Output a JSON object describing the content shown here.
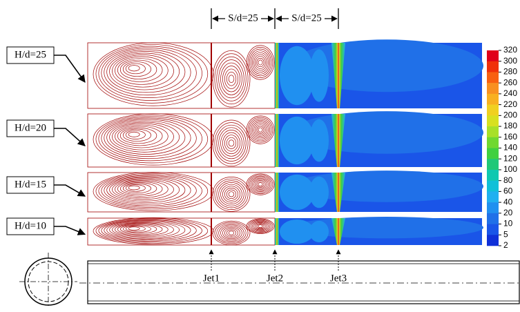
{
  "spacing_labels": [
    "S/d=25",
    "S/d=25"
  ],
  "panels": [
    {
      "label": "H/d=25"
    },
    {
      "label": "H/d=20"
    },
    {
      "label": "H/d=15"
    },
    {
      "label": "H/d=10"
    }
  ],
  "jets": [
    "Jet1",
    "Jet2",
    "Jet3"
  ],
  "colorbar": {
    "ticks": [
      320,
      300,
      280,
      260,
      240,
      220,
      200,
      180,
      160,
      140,
      120,
      100,
      80,
      60,
      40,
      20,
      10,
      5,
      2
    ],
    "colors": [
      "#e0001a",
      "#f0300a",
      "#f86010",
      "#f89020",
      "#f8b020",
      "#f0d020",
      "#d8e020",
      "#a8e028",
      "#70d830",
      "#40d040",
      "#20c878",
      "#10c8b0",
      "#10c0d8",
      "#20b0f0",
      "#2090f0",
      "#2070e8",
      "#1a55e8",
      "#1030d8"
    ]
  }
}
